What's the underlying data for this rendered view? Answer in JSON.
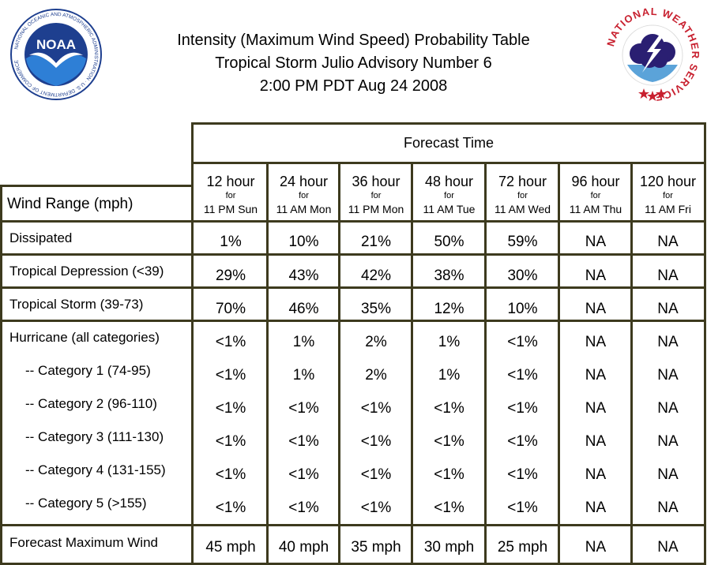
{
  "header": {
    "title_line1": "Intensity (Maximum Wind Speed) Probability Table",
    "title_line2": "Tropical Storm Julio Advisory Number 6",
    "title_line3": "2:00 PM PDT Aug 24 2008",
    "noaa_logo_text": "NOAA",
    "noaa_ring_text": "NATIONAL OCEANIC AND ATMOSPHERIC ADMINISTRATION · U.S. DEPARTMENT OF COMMERCE",
    "nws_ring_text": "NATIONAL WEATHER SERVICE"
  },
  "table": {
    "forecast_time_label": "Forecast Time",
    "wind_range_label": "Wind Range (mph)",
    "columns": [
      {
        "hour": "12 hour",
        "for": "for",
        "time": "11 PM Sun"
      },
      {
        "hour": "24 hour",
        "for": "for",
        "time": "11 AM Mon"
      },
      {
        "hour": "36 hour",
        "for": "for",
        "time": "11 PM Mon"
      },
      {
        "hour": "48 hour",
        "for": "for",
        "time": "11 AM Tue"
      },
      {
        "hour": "72 hour",
        "for": "for",
        "time": "11 AM Wed"
      },
      {
        "hour": "96 hour",
        "for": "for",
        "time": "11 AM Thu"
      },
      {
        "hour": "120 hour",
        "for": "for",
        "time": "11 AM Fri"
      }
    ],
    "rows": [
      {
        "label": "Dissipated",
        "values": [
          "1%",
          "10%",
          "21%",
          "50%",
          "59%",
          "NA",
          "NA"
        ]
      },
      {
        "label": "Tropical Depression (<39)",
        "values": [
          "29%",
          "43%",
          "42%",
          "38%",
          "30%",
          "NA",
          "NA"
        ]
      },
      {
        "label": "Tropical Storm (39-73)",
        "values": [
          "70%",
          "46%",
          "35%",
          "12%",
          "10%",
          "NA",
          "NA"
        ]
      },
      {
        "label": "Hurricane (all categories)",
        "values": [
          "<1%",
          "1%",
          "2%",
          "1%",
          "<1%",
          "NA",
          "NA"
        ]
      },
      {
        "label": "-- Category 1 (74-95)",
        "values": [
          "<1%",
          "1%",
          "2%",
          "1%",
          "<1%",
          "NA",
          "NA"
        ]
      },
      {
        "label": "-- Category 2 (96-110)",
        "values": [
          "<1%",
          "<1%",
          "<1%",
          "<1%",
          "<1%",
          "NA",
          "NA"
        ]
      },
      {
        "label": "-- Category 3 (111-130)",
        "values": [
          "<1%",
          "<1%",
          "<1%",
          "<1%",
          "<1%",
          "NA",
          "NA"
        ]
      },
      {
        "label": "-- Category 4 (131-155)",
        "values": [
          "<1%",
          "<1%",
          "<1%",
          "<1%",
          "<1%",
          "NA",
          "NA"
        ]
      },
      {
        "label": "-- Category 5 (>155)",
        "values": [
          "<1%",
          "<1%",
          "<1%",
          "<1%",
          "<1%",
          "NA",
          "NA"
        ]
      },
      {
        "label": "Forecast Maximum Wind",
        "values": [
          "45 mph",
          "40 mph",
          "35 mph",
          "30 mph",
          "25 mph",
          "NA",
          "NA"
        ]
      }
    ]
  },
  "colors": {
    "border": "#3d3a1e",
    "noaa_blue": "#1e3f8f",
    "nws_red": "#c8202f"
  }
}
